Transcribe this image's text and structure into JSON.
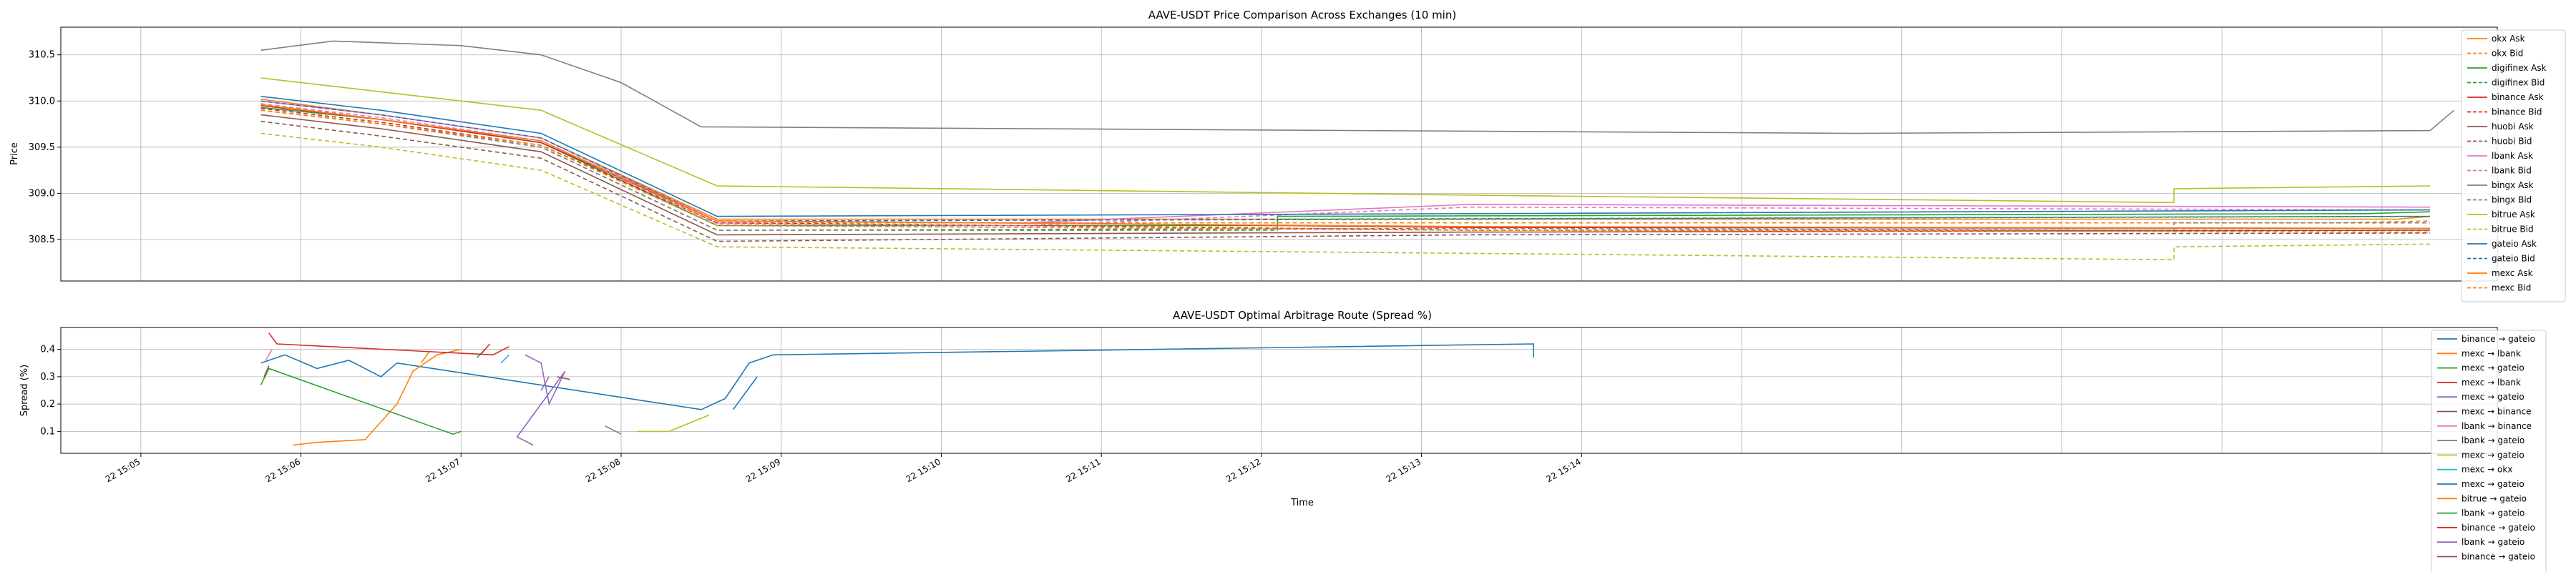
{
  "chart_data": [
    {
      "type": "line",
      "title": "AAVE-USDT Price Comparison Across Exchanges (10 min)",
      "ylabel": "Price",
      "ylim": [
        308.05,
        310.8
      ],
      "y_ticks": [
        308.5,
        309.0,
        309.5,
        310.0,
        310.5
      ],
      "grid": true,
      "legend_placement": "right",
      "series": [
        {
          "name": "okx Ask",
          "color": "#ff7f0e",
          "dash": false,
          "points": [
            [
              0.75,
              310.02
            ],
            [
              1.5,
              309.85
            ],
            [
              2.5,
              309.6
            ],
            [
              3.6,
              308.72
            ],
            [
              4.5,
              308.72
            ],
            [
              10.7,
              308.72
            ],
            [
              13.7,
              308.72
            ],
            [
              14.1,
              308.72
            ],
            [
              14.3,
              308.75
            ]
          ]
        },
        {
          "name": "okx Bid",
          "color": "#ff7f0e",
          "dash": true,
          "points": [
            [
              0.75,
              309.97
            ],
            [
              1.5,
              309.8
            ],
            [
              2.5,
              309.55
            ],
            [
              3.6,
              308.68
            ],
            [
              10.7,
              308.68
            ],
            [
              13.7,
              308.68
            ],
            [
              14.3,
              308.7
            ]
          ]
        },
        {
          "name": "digifinex Ask",
          "color": "#2ca02c",
          "dash": false,
          "points": [
            [
              0.75,
              309.93
            ],
            [
              1.5,
              309.8
            ],
            [
              2.5,
              309.55
            ],
            [
              3.6,
              308.65
            ],
            [
              7.1,
              308.65
            ],
            [
              7.1,
              308.75
            ],
            [
              13.9,
              308.78
            ],
            [
              14.3,
              308.8
            ]
          ]
        },
        {
          "name": "digifinex Bid",
          "color": "#2ca02c",
          "dash": true,
          "points": [
            [
              0.75,
              309.9
            ],
            [
              1.5,
              309.75
            ],
            [
              2.5,
              309.5
            ],
            [
              3.6,
              308.6
            ],
            [
              7.1,
              308.6
            ],
            [
              7.1,
              308.72
            ],
            [
              14.3,
              308.75
            ]
          ]
        },
        {
          "name": "binance Ask",
          "color": "#d62728",
          "dash": false,
          "points": [
            [
              0.75,
              309.95
            ],
            [
              1.5,
              309.8
            ],
            [
              2.5,
              309.55
            ],
            [
              3.6,
              308.7
            ],
            [
              5.5,
              308.68
            ],
            [
              8.3,
              308.63
            ],
            [
              14.3,
              308.62
            ]
          ]
        },
        {
          "name": "binance Bid",
          "color": "#d62728",
          "dash": true,
          "points": [
            [
              0.75,
              309.92
            ],
            [
              1.5,
              309.77
            ],
            [
              2.5,
              309.52
            ],
            [
              3.6,
              308.68
            ],
            [
              5.5,
              308.65
            ],
            [
              8.3,
              308.6
            ],
            [
              14.3,
              308.6
            ]
          ]
        },
        {
          "name": "huobi Ask",
          "color": "#8c564b",
          "dash": false,
          "points": [
            [
              0.75,
              309.85
            ],
            [
              1.5,
              309.7
            ],
            [
              2.5,
              309.45
            ],
            [
              3.6,
              308.55
            ],
            [
              8.3,
              308.58
            ],
            [
              14.3,
              308.6
            ]
          ]
        },
        {
          "name": "huobi Bid",
          "color": "#8c564b",
          "dash": true,
          "points": [
            [
              0.75,
              309.78
            ],
            [
              1.5,
              309.62
            ],
            [
              2.5,
              309.38
            ],
            [
              3.6,
              308.48
            ],
            [
              8.3,
              308.55
            ],
            [
              14.3,
              308.57
            ]
          ]
        },
        {
          "name": "lbank Ask",
          "color": "#e377c2",
          "dash": false,
          "points": [
            [
              0.75,
              310.0
            ],
            [
              1.5,
              309.85
            ],
            [
              2.5,
              309.6
            ],
            [
              3.6,
              308.7
            ],
            [
              5.5,
              308.68
            ],
            [
              8.3,
              308.88
            ],
            [
              14.3,
              308.85
            ]
          ]
        },
        {
          "name": "lbank Bid",
          "color": "#e377c2",
          "dash": true,
          "points": [
            [
              0.75,
              309.97
            ],
            [
              1.5,
              309.82
            ],
            [
              2.5,
              309.57
            ],
            [
              3.6,
              308.67
            ],
            [
              5.5,
              308.65
            ],
            [
              8.3,
              308.85
            ],
            [
              14.3,
              308.82
            ]
          ]
        },
        {
          "name": "bingx Ask",
          "color": "#7f7f7f",
          "dash": false,
          "points": [
            [
              0.75,
              310.55
            ],
            [
              1.2,
              310.65
            ],
            [
              2.0,
              310.6
            ],
            [
              2.5,
              310.5
            ],
            [
              3.0,
              310.2
            ],
            [
              3.5,
              309.72
            ],
            [
              10.7,
              309.65
            ],
            [
              14.3,
              309.68
            ],
            [
              14.45,
              309.9
            ]
          ]
        },
        {
          "name": "bingx Bid",
          "color": "#7f7f7f",
          "dash": true,
          "points": [
            [
              0.75,
              309.9
            ],
            [
              1.5,
              309.75
            ],
            [
              2.5,
              309.5
            ],
            [
              3.6,
              308.6
            ],
            [
              8.3,
              308.62
            ],
            [
              12.7,
              308.6
            ],
            [
              12.7,
              308.68
            ],
            [
              14.3,
              308.68
            ]
          ]
        },
        {
          "name": "bitrue Ask",
          "color": "#bcbd22",
          "dash": false,
          "points": [
            [
              0.75,
              310.25
            ],
            [
              1.5,
              310.1
            ],
            [
              2.5,
              309.9
            ],
            [
              3.6,
              309.08
            ],
            [
              8.3,
              308.98
            ],
            [
              12.7,
              308.9
            ],
            [
              12.7,
              309.05
            ],
            [
              14.3,
              309.08
            ]
          ]
        },
        {
          "name": "bitrue Bid",
          "color": "#bcbd22",
          "dash": true,
          "points": [
            [
              0.75,
              309.65
            ],
            [
              1.5,
              309.5
            ],
            [
              2.5,
              309.25
            ],
            [
              3.6,
              308.42
            ],
            [
              8.3,
              308.35
            ],
            [
              12.7,
              308.28
            ],
            [
              12.7,
              308.42
            ],
            [
              14.3,
              308.45
            ]
          ]
        },
        {
          "name": "gateio Ask",
          "color": "#1f77b4",
          "dash": false,
          "points": [
            [
              0.75,
              310.05
            ],
            [
              1.5,
              309.9
            ],
            [
              2.5,
              309.65
            ],
            [
              3.6,
              308.75
            ],
            [
              8.3,
              308.78
            ],
            [
              14.3,
              308.82
            ]
          ]
        },
        {
          "name": "gateio Bid",
          "color": "#1f77b4",
          "dash": true,
          "points": [
            [
              0.75,
              310.0
            ],
            [
              1.5,
              309.85
            ],
            [
              2.5,
              309.6
            ],
            [
              3.6,
              308.7
            ],
            [
              8.3,
              308.72
            ],
            [
              14.3,
              308.75
            ]
          ]
        },
        {
          "name": "mexc Ask",
          "color": "#ff7f0e",
          "dash": false,
          "points": [
            [
              0.75,
              309.96
            ],
            [
              1.5,
              309.8
            ],
            [
              2.5,
              309.57
            ],
            [
              3.6,
              308.7
            ],
            [
              8.3,
              308.64
            ],
            [
              14.3,
              308.62
            ]
          ]
        },
        {
          "name": "mexc Bid",
          "color": "#ff7f0e",
          "dash": true,
          "points": [
            [
              0.75,
              309.9
            ],
            [
              1.5,
              309.75
            ],
            [
              2.5,
              309.52
            ],
            [
              3.6,
              308.65
            ],
            [
              8.3,
              308.6
            ],
            [
              14.3,
              308.58
            ]
          ]
        }
      ]
    },
    {
      "type": "line",
      "title": "AAVE-USDT Optimal Arbitrage Route (Spread %)",
      "xlabel": "Time",
      "ylabel": "Spread (%)",
      "ylim": [
        0.02,
        0.48
      ],
      "y_ticks": [
        0.1,
        0.2,
        0.3,
        0.4
      ],
      "x_ticks": [
        "22 15:05",
        "22 15:06",
        "22 15:07",
        "22 15:08",
        "22 15:09",
        "22 15:10",
        "22 15:11",
        "22 15:12",
        "22 15:13",
        "22 15:14"
      ],
      "grid": true,
      "legend_placement": "right",
      "series": [
        {
          "name": "binance → gateio",
          "color": "#1f77b4",
          "points": [
            [
              0.75,
              0.35
            ],
            [
              0.9,
              0.38
            ],
            [
              1.1,
              0.33
            ],
            [
              1.3,
              0.36
            ],
            [
              1.5,
              0.3
            ],
            [
              1.6,
              0.35
            ],
            [
              3.5,
              0.18
            ],
            [
              3.65,
              0.22
            ],
            [
              3.8,
              0.35
            ],
            [
              3.95,
              0.38
            ],
            [
              8.7,
              0.42
            ],
            [
              8.7,
              0.37
            ]
          ]
        },
        {
          "name": "mexc → lbank",
          "color": "#ff7f0e",
          "points": [
            [
              0.95,
              0.05
            ],
            [
              1.1,
              0.06
            ],
            [
              1.4,
              0.07
            ],
            [
              1.6,
              0.2
            ],
            [
              1.7,
              0.32
            ],
            [
              1.85,
              0.38
            ],
            [
              2.0,
              0.4
            ]
          ]
        },
        {
          "name": "mexc → gateio",
          "color": "#2ca02c",
          "points": [
            [
              0.75,
              0.27
            ],
            [
              0.8,
              0.33
            ],
            [
              1.95,
              0.09
            ],
            [
              2.0,
              0.1
            ]
          ]
        },
        {
          "name": "mexc → lbank",
          "color": "#d62728",
          "points": [
            [
              0.8,
              0.46
            ],
            [
              0.85,
              0.42
            ],
            [
              2.2,
              0.38
            ],
            [
              2.3,
              0.41
            ]
          ]
        },
        {
          "name": "mexc → gateio",
          "color": "#9467bd",
          "points": [
            [
              2.4,
              0.38
            ],
            [
              2.5,
              0.35
            ],
            [
              2.55,
              0.2
            ],
            [
              2.65,
              0.32
            ],
            [
              2.35,
              0.08
            ],
            [
              2.45,
              0.05
            ]
          ]
        },
        {
          "name": "mexc → binance",
          "color": "#8c564b",
          "points": [
            [
              2.6,
              0.3
            ],
            [
              2.68,
              0.29
            ]
          ]
        },
        {
          "name": "lbank → binance",
          "color": "#e377c2",
          "points": [
            [
              0.78,
              0.36
            ],
            [
              0.82,
              0.4
            ]
          ]
        },
        {
          "name": "lbank → gateio",
          "color": "#7f7f7f",
          "points": [
            [
              2.9,
              0.12
            ],
            [
              3.0,
              0.09
            ]
          ]
        },
        {
          "name": "mexc → gateio",
          "color": "#bcbd22",
          "points": [
            [
              3.1,
              0.1
            ],
            [
              3.3,
              0.1
            ],
            [
              3.55,
              0.16
            ]
          ]
        },
        {
          "name": "mexc → okx",
          "color": "#17becf",
          "points": [
            [
              2.25,
              0.35
            ],
            [
              2.3,
              0.38
            ]
          ]
        },
        {
          "name": "mexc → gateio",
          "color": "#1f77b4",
          "points": [
            [
              3.7,
              0.18
            ],
            [
              3.85,
              0.3
            ]
          ]
        },
        {
          "name": "bitrue → gateio",
          "color": "#ff7f0e",
          "points": [
            [
              1.75,
              0.35
            ],
            [
              1.8,
              0.39
            ]
          ]
        },
        {
          "name": "lbank → gateio",
          "color": "#2ca02c",
          "points": [
            [
              2.1,
              0.37
            ],
            [
              2.15,
              0.4
            ]
          ]
        },
        {
          "name": "binance → gateio",
          "color": "#d62728",
          "points": [
            [
              2.12,
              0.38
            ],
            [
              2.18,
              0.42
            ]
          ]
        },
        {
          "name": "lbank → gateio",
          "color": "#9467bd",
          "points": [
            [
              2.5,
              0.25
            ],
            [
              2.55,
              0.3
            ]
          ]
        },
        {
          "name": "binance → gateio",
          "color": "#8c564b",
          "points": [
            [
              0.77,
              0.3
            ],
            [
              0.8,
              0.34
            ]
          ]
        }
      ]
    }
  ]
}
